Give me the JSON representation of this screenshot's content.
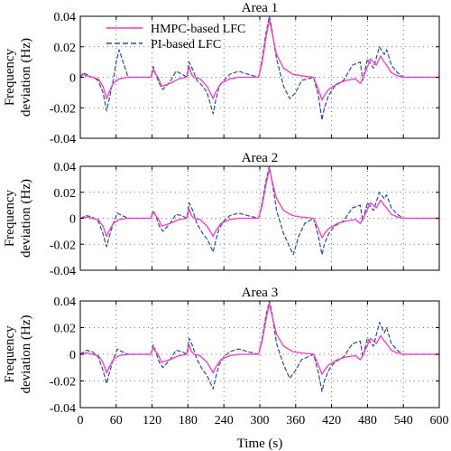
{
  "chart_data": [
    {
      "type": "line",
      "title": "Area 1",
      "ylabel": [
        "Frequency",
        "deviation (Hz)"
      ],
      "xlabel": "",
      "xlim": [
        0,
        600
      ],
      "ylim": [
        -0.04,
        0.04
      ],
      "yticks": [
        "0.04",
        "0.02",
        "0",
        "-0.02",
        "-0.04"
      ],
      "grid": true,
      "legend": {
        "placement": "top-left",
        "entries": [
          "HMPC-based LFC",
          "PI-based LFC"
        ]
      },
      "series": [
        {
          "name": "HMPC-based LFC",
          "color": "#ff33cc",
          "style": "solid",
          "x": [
            0,
            5,
            10,
            20,
            30,
            38,
            44,
            48,
            55,
            65,
            80,
            100,
            118,
            122,
            126,
            130,
            136,
            150,
            165,
            178,
            182,
            186,
            190,
            200,
            212,
            222,
            226,
            235,
            250,
            265,
            280,
            298,
            304,
            310,
            316,
            320,
            328,
            340,
            355,
            370,
            390,
            398,
            404,
            408,
            415,
            430,
            445,
            460,
            468,
            472,
            478,
            485,
            495,
            502,
            508,
            512,
            520,
            530,
            540,
            560,
            600
          ],
          "y": [
            0,
            0.002,
            0.001,
            0,
            -0.001,
            -0.006,
            -0.014,
            -0.01,
            -0.004,
            -0.001,
            0,
            0,
            0,
            0.005,
            0.002,
            0,
            -0.006,
            -0.004,
            -0.001,
            0,
            0.007,
            0.002,
            0,
            -0.001,
            -0.006,
            -0.014,
            -0.01,
            -0.004,
            -0.001,
            0,
            0,
            0,
            0.01,
            0.025,
            0.038,
            0.03,
            0.015,
            0.006,
            0.002,
            0.001,
            0,
            -0.008,
            -0.015,
            -0.012,
            -0.008,
            -0.004,
            -0.002,
            -0.001,
            -0.004,
            -0.001,
            0.005,
            0.012,
            0.008,
            0.014,
            0.01,
            0.008,
            0.003,
            0.001,
            0,
            0,
            0
          ]
        },
        {
          "name": "PI-based LFC",
          "color": "#2b4c9b",
          "style": "dashed",
          "x": [
            0,
            5,
            10,
            20,
            30,
            38,
            44,
            48,
            55,
            60,
            65,
            70,
            80,
            100,
            118,
            122,
            126,
            132,
            138,
            150,
            160,
            170,
            178,
            182,
            188,
            195,
            205,
            212,
            222,
            226,
            232,
            240,
            250,
            265,
            280,
            298,
            304,
            310,
            316,
            320,
            328,
            340,
            350,
            360,
            370,
            390,
            398,
            404,
            408,
            415,
            425,
            440,
            455,
            468,
            472,
            480,
            490,
            500,
            508,
            512,
            520,
            530,
            540,
            560,
            600
          ],
          "y": [
            0,
            0.003,
            0.002,
            0,
            -0.002,
            -0.01,
            -0.022,
            -0.015,
            -0.002,
            0.01,
            0.018,
            0.012,
            0,
            0,
            0,
            0.007,
            0.002,
            -0.004,
            -0.008,
            -0.003,
            0.004,
            0.002,
            0,
            0.01,
            0.005,
            -0.002,
            -0.006,
            -0.01,
            -0.024,
            -0.016,
            -0.006,
            -0.002,
            0.002,
            0.004,
            0.002,
            0,
            0.012,
            0.028,
            0.04,
            0.032,
            0.012,
            -0.006,
            -0.014,
            -0.01,
            -0.002,
            0,
            -0.012,
            -0.028,
            -0.02,
            -0.012,
            -0.006,
            -0.002,
            0.008,
            0.01,
            -0.002,
            0.012,
            0.006,
            0.02,
            0.015,
            0.018,
            0.008,
            0.003,
            0,
            0,
            0
          ]
        }
      ]
    },
    {
      "type": "line",
      "title": "Area 2",
      "ylabel": [
        "Frequency",
        "deviation (Hz)"
      ],
      "xlabel": "",
      "xlim": [
        0,
        600
      ],
      "ylim": [
        -0.04,
        0.04
      ],
      "yticks": [
        "0.04",
        "0.02",
        "0",
        "-0.02",
        "-0.04"
      ],
      "grid": true,
      "series": [
        {
          "name": "HMPC-based LFC",
          "color": "#ff33cc",
          "style": "solid",
          "x": [
            0,
            10,
            20,
            30,
            38,
            44,
            48,
            55,
            65,
            80,
            100,
            118,
            122,
            126,
            130,
            136,
            150,
            165,
            178,
            182,
            186,
            190,
            200,
            212,
            222,
            226,
            235,
            250,
            265,
            280,
            298,
            304,
            310,
            316,
            320,
            328,
            340,
            355,
            370,
            390,
            398,
            404,
            408,
            415,
            430,
            445,
            460,
            468,
            472,
            478,
            485,
            495,
            502,
            508,
            512,
            520,
            530,
            540,
            560,
            600
          ],
          "y": [
            0,
            0.001,
            0,
            -0.001,
            -0.006,
            -0.014,
            -0.01,
            -0.004,
            -0.001,
            0,
            0,
            0,
            0.005,
            0.002,
            0,
            -0.006,
            -0.004,
            -0.001,
            0,
            0.007,
            0.002,
            0,
            -0.001,
            -0.006,
            -0.014,
            -0.01,
            -0.004,
            -0.001,
            0,
            0,
            0,
            0.01,
            0.025,
            0.038,
            0.03,
            0.015,
            0.006,
            0.002,
            0.001,
            0,
            -0.008,
            -0.015,
            -0.012,
            -0.008,
            -0.004,
            -0.002,
            -0.001,
            -0.004,
            -0.001,
            0.005,
            0.012,
            0.008,
            0.014,
            0.01,
            0.008,
            0.003,
            0.001,
            0,
            0,
            0
          ]
        },
        {
          "name": "PI-based LFC",
          "color": "#2b4c9b",
          "style": "dashed",
          "x": [
            0,
            10,
            20,
            30,
            38,
            44,
            48,
            55,
            62,
            70,
            80,
            100,
            118,
            122,
            126,
            132,
            138,
            150,
            160,
            170,
            178,
            182,
            188,
            195,
            205,
            212,
            222,
            226,
            232,
            240,
            250,
            265,
            280,
            298,
            304,
            310,
            316,
            320,
            328,
            340,
            348,
            356,
            365,
            375,
            390,
            398,
            404,
            408,
            415,
            425,
            440,
            455,
            468,
            472,
            480,
            490,
            500,
            508,
            512,
            520,
            530,
            540,
            560,
            600
          ],
          "y": [
            0,
            0.002,
            0.001,
            -0.002,
            -0.012,
            -0.022,
            -0.015,
            -0.004,
            0.004,
            0.002,
            0,
            0,
            0,
            0.006,
            0.002,
            -0.006,
            -0.01,
            -0.004,
            0.003,
            0.002,
            0,
            0.012,
            0.006,
            -0.004,
            -0.012,
            -0.016,
            -0.026,
            -0.018,
            -0.008,
            -0.002,
            0.002,
            0.004,
            0.002,
            0,
            0.012,
            0.028,
            0.04,
            0.03,
            0.006,
            -0.012,
            -0.02,
            -0.028,
            -0.014,
            -0.004,
            0,
            -0.014,
            -0.028,
            -0.02,
            -0.012,
            -0.006,
            -0.002,
            0.008,
            0.01,
            -0.002,
            0.012,
            0.006,
            0.02,
            0.015,
            0.018,
            0.008,
            0.003,
            0,
            0,
            0
          ]
        }
      ]
    },
    {
      "type": "line",
      "title": "Area 3",
      "ylabel": [
        "Frequency",
        "deviation (Hz)"
      ],
      "xlabel": "Time (s)",
      "xlim": [
        0,
        600
      ],
      "ylim": [
        -0.04,
        0.04
      ],
      "yticks": [
        "0.04",
        "0.02",
        "0",
        "-0.02",
        "-0.04"
      ],
      "xticks": [
        "0",
        "60",
        "120",
        "180",
        "240",
        "300",
        "360",
        "420",
        "480",
        "540",
        "600"
      ],
      "grid": true,
      "series": [
        {
          "name": "HMPC-based LFC",
          "color": "#ff33cc",
          "style": "solid",
          "x": [
            0,
            10,
            20,
            30,
            38,
            44,
            48,
            55,
            65,
            80,
            100,
            118,
            122,
            126,
            130,
            136,
            150,
            165,
            178,
            182,
            186,
            190,
            200,
            212,
            222,
            226,
            235,
            250,
            265,
            280,
            298,
            304,
            310,
            316,
            320,
            328,
            340,
            355,
            370,
            390,
            398,
            404,
            408,
            415,
            430,
            445,
            460,
            468,
            472,
            478,
            485,
            495,
            502,
            508,
            512,
            520,
            530,
            540,
            560,
            600
          ],
          "y": [
            0,
            0.001,
            0,
            -0.001,
            -0.006,
            -0.014,
            -0.01,
            -0.004,
            -0.001,
            0,
            0,
            0,
            0.005,
            0.002,
            0,
            -0.006,
            -0.004,
            -0.001,
            0,
            0.007,
            0.002,
            0,
            -0.001,
            -0.006,
            -0.014,
            -0.01,
            -0.004,
            -0.001,
            0,
            0,
            0,
            0.01,
            0.025,
            0.038,
            0.03,
            0.015,
            0.006,
            0.002,
            0.001,
            0,
            -0.008,
            -0.015,
            -0.012,
            -0.008,
            -0.004,
            -0.002,
            -0.001,
            -0.004,
            -0.001,
            0.005,
            0.012,
            0.008,
            0.014,
            0.01,
            0.008,
            0.003,
            0.001,
            0,
            0,
            0
          ]
        },
        {
          "name": "PI-based LFC",
          "color": "#2b4c9b",
          "style": "dashed",
          "x": [
            0,
            10,
            20,
            30,
            38,
            44,
            48,
            55,
            62,
            70,
            80,
            100,
            118,
            122,
            126,
            132,
            138,
            150,
            160,
            170,
            178,
            182,
            188,
            195,
            205,
            212,
            222,
            226,
            232,
            240,
            250,
            265,
            280,
            298,
            304,
            310,
            316,
            320,
            328,
            340,
            350,
            360,
            370,
            390,
            398,
            404,
            408,
            415,
            425,
            440,
            455,
            468,
            472,
            480,
            490,
            500,
            508,
            512,
            520,
            530,
            540,
            560,
            600
          ],
          "y": [
            0,
            0.003,
            0.002,
            -0.002,
            -0.012,
            -0.022,
            -0.015,
            -0.004,
            0.004,
            0.002,
            0,
            0,
            0,
            0.007,
            0.002,
            -0.006,
            -0.01,
            -0.004,
            0.003,
            0.002,
            0,
            0.012,
            0.006,
            -0.004,
            -0.012,
            -0.016,
            -0.026,
            -0.018,
            -0.008,
            -0.002,
            0.002,
            0.004,
            0.002,
            0,
            0.012,
            0.028,
            0.04,
            0.032,
            0.008,
            -0.008,
            -0.018,
            -0.012,
            -0.004,
            0,
            -0.014,
            -0.028,
            -0.02,
            -0.012,
            -0.006,
            -0.002,
            0.008,
            0.01,
            -0.002,
            0.012,
            0.006,
            0.024,
            0.016,
            0.02,
            0.008,
            0.003,
            0,
            0,
            0
          ]
        }
      ]
    }
  ]
}
